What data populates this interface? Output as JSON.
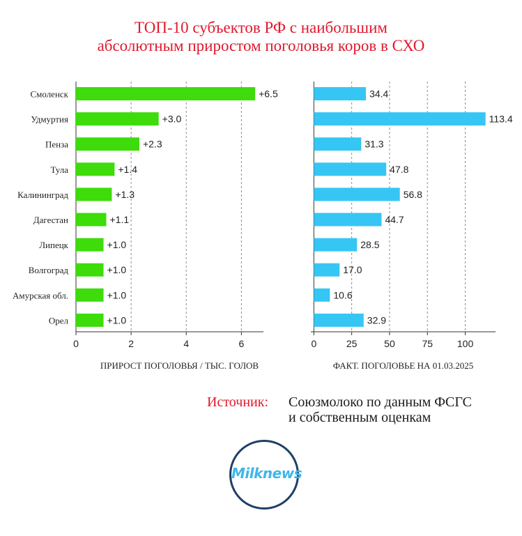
{
  "title": {
    "line1": "ТОП-10 субъектов РФ с наибольшим",
    "line2": "абсолютным приростом поголовья коров в СХО"
  },
  "colors": {
    "title": "#e0192d",
    "left_bars": "#3ddc0a",
    "right_bars": "#36c6f4",
    "grid": "#8c8c8c",
    "logo_ring": "#1f3f66",
    "logo_text": "#3fb6ea"
  },
  "chart_data": [
    {
      "type": "bar",
      "orientation": "horizontal",
      "categories": [
        "Смоленск",
        "Удмуртия",
        "Пенза",
        "Тула",
        "Калининград",
        "Дагестан",
        "Липецк",
        "Волгоград",
        "Амурская обл.",
        "Орел"
      ],
      "values": [
        6.5,
        3.0,
        2.3,
        1.4,
        1.3,
        1.1,
        1.0,
        1.0,
        1.0,
        1.0
      ],
      "data_labels": [
        "+6.5",
        "+3.0",
        "+2.3",
        "+1.4",
        "+1.3",
        "+1.1",
        "+1.0",
        "+1.0",
        "+1.0",
        "+1.0"
      ],
      "xlabel": "ПРИРОСТ ПОГОЛОВЬЯ / ТЫС. ГОЛОВ",
      "xlim": [
        0,
        6.8
      ],
      "xticks": [
        0,
        2,
        4,
        6
      ],
      "xtick_labels": [
        "0",
        "2",
        "4",
        "6"
      ],
      "grid": "vertical dashed"
    },
    {
      "type": "bar",
      "orientation": "horizontal",
      "categories": [
        "Смоленск",
        "Удмуртия",
        "Пенза",
        "Тула",
        "Калининград",
        "Дагестан",
        "Липецк",
        "Волгоград",
        "Амурская обл.",
        "Орел"
      ],
      "values": [
        34.4,
        113.4,
        31.3,
        47.8,
        56.8,
        44.7,
        28.5,
        17.0,
        10.6,
        32.9
      ],
      "data_labels": [
        "34.4",
        "113.4",
        "31.3",
        "47.8",
        "56.8",
        "44.7",
        "28.5",
        "17.0",
        "10.6",
        "32.9"
      ],
      "xlabel": "ФАКТ. ПОГОЛОВЬЕ НА 01.03.2025",
      "xlim": [
        -2,
        120
      ],
      "xticks": [
        0,
        25,
        50,
        75,
        100
      ],
      "xtick_labels": [
        "0",
        "25",
        "50",
        "75",
        "100"
      ],
      "grid": "vertical dashed"
    }
  ],
  "source": {
    "label": "Источник:",
    "line1": "Союзмолоко по данным ФСГС",
    "line2": "и собственным оценкам"
  },
  "logo": {
    "text": "Milknews"
  }
}
